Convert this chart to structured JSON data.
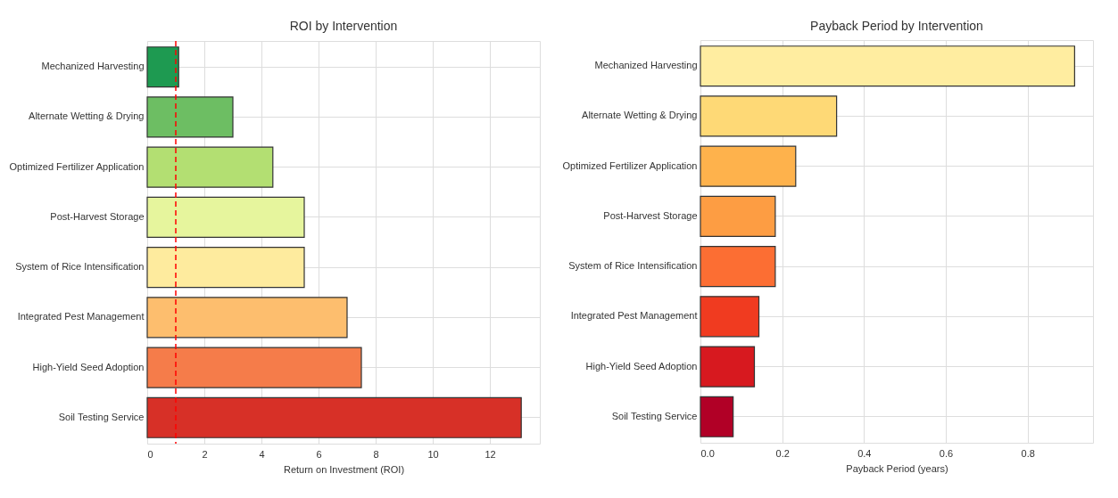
{
  "chart_data": [
    {
      "type": "bar",
      "orientation": "horizontal",
      "title": "ROI by Intervention",
      "xlabel": "Return on Investment (ROI)",
      "categories": [
        "Mechanized Harvesting",
        "Alternate Wetting & Drying",
        "Optimized Fertilizer Application",
        "Post-Harvest Storage",
        "System of Rice Intensification",
        "Integrated Pest Management",
        "High-Yield Seed Adoption",
        "Soil Testing Service"
      ],
      "values": [
        1.1,
        3.0,
        4.4,
        5.5,
        5.5,
        7.0,
        7.5,
        13.1
      ],
      "colors": [
        "#1e9a51",
        "#6dbe63",
        "#b3df72",
        "#e6f59d",
        "#feeb9e",
        "#fdbe6e",
        "#f57c4a",
        "#d73027"
      ],
      "xlim": [
        0,
        13.75
      ],
      "xticks": [
        0,
        2,
        4,
        6,
        8,
        10,
        12
      ],
      "grid": true,
      "ref_lines": [
        {
          "axis": "x",
          "value": 1,
          "color": "#ff0000",
          "line_style": "dashed"
        }
      ]
    },
    {
      "type": "bar",
      "orientation": "horizontal",
      "title": "Payback Period by Intervention",
      "xlabel": "Payback Period (years)",
      "categories": [
        "Mechanized Harvesting",
        "Alternate Wetting & Drying",
        "Optimized Fertilizer Application",
        "Post-Harvest Storage",
        "System of Rice Intensification",
        "Integrated Pest Management",
        "High-Yield Seed Adoption",
        "Soil Testing Service"
      ],
      "values": [
        0.915,
        0.333,
        0.233,
        0.183,
        0.183,
        0.143,
        0.132,
        0.08
      ],
      "colors": [
        "#ffeda0",
        "#fed976",
        "#feb24c",
        "#fd9d43",
        "#fc6e33",
        "#f03b20",
        "#d7191f",
        "#b10026"
      ],
      "xlim": [
        0,
        0.96
      ],
      "xticks": [
        {
          "value": 0,
          "label": "0.0"
        },
        {
          "value": 0.2,
          "label": "0.2"
        },
        {
          "value": 0.4,
          "label": "0.4"
        },
        {
          "value": 0.6,
          "label": "0.6"
        },
        {
          "value": 0.8,
          "label": "0.8"
        }
      ],
      "grid": true
    }
  ]
}
